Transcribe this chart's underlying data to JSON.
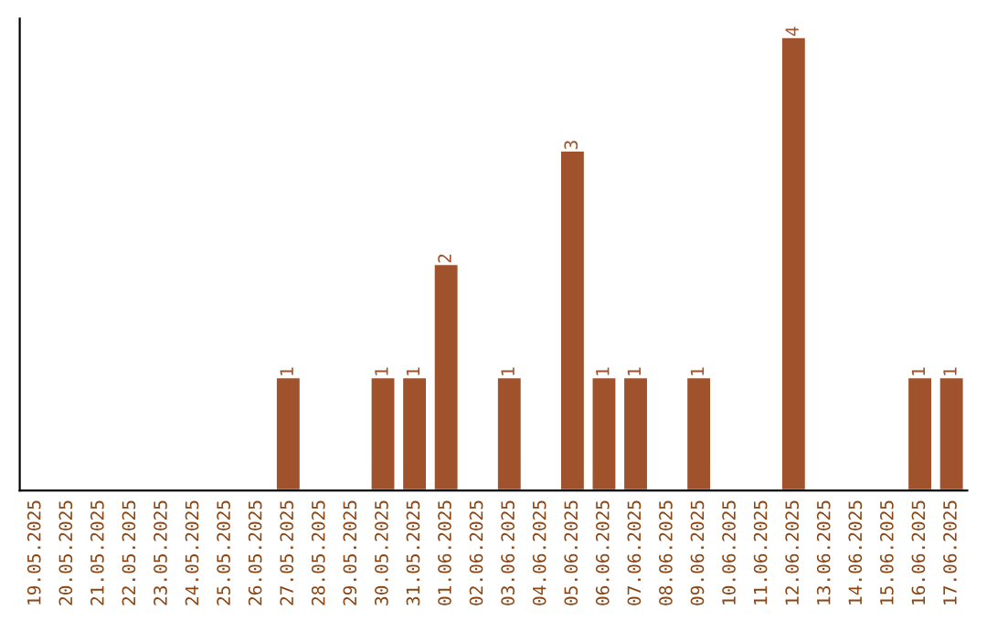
{
  "chart_data": {
    "type": "bar",
    "categories": [
      "19.05.2025",
      "20.05.2025",
      "21.05.2025",
      "22.05.2025",
      "23.05.2025",
      "24.05.2025",
      "25.05.2025",
      "26.05.2025",
      "27.05.2025",
      "28.05.2025",
      "29.05.2025",
      "30.05.2025",
      "31.05.2025",
      "01.06.2025",
      "02.06.2025",
      "03.06.2025",
      "04.06.2025",
      "05.06.2025",
      "06.06.2025",
      "07.06.2025",
      "08.06.2025",
      "09.06.2025",
      "10.06.2025",
      "11.06.2025",
      "12.06.2025",
      "13.06.2025",
      "14.06.2025",
      "15.06.2025",
      "16.06.2025",
      "17.06.2025"
    ],
    "values": [
      0,
      0,
      0,
      0,
      0,
      0,
      0,
      0,
      1,
      0,
      0,
      1,
      1,
      2,
      0,
      1,
      0,
      3,
      1,
      1,
      0,
      1,
      0,
      0,
      4,
      0,
      0,
      0,
      1,
      1
    ],
    "value_labels": [
      null,
      null,
      null,
      null,
      null,
      null,
      null,
      null,
      "1",
      null,
      null,
      "1",
      "1",
      "2",
      null,
      "1",
      null,
      "3",
      "1",
      "1",
      null,
      "1",
      null,
      null,
      "4",
      null,
      null,
      null,
      "1",
      "1"
    ],
    "color": "#a0522d",
    "grid": false,
    "legend": false,
    "tick_labels": "x"
  }
}
